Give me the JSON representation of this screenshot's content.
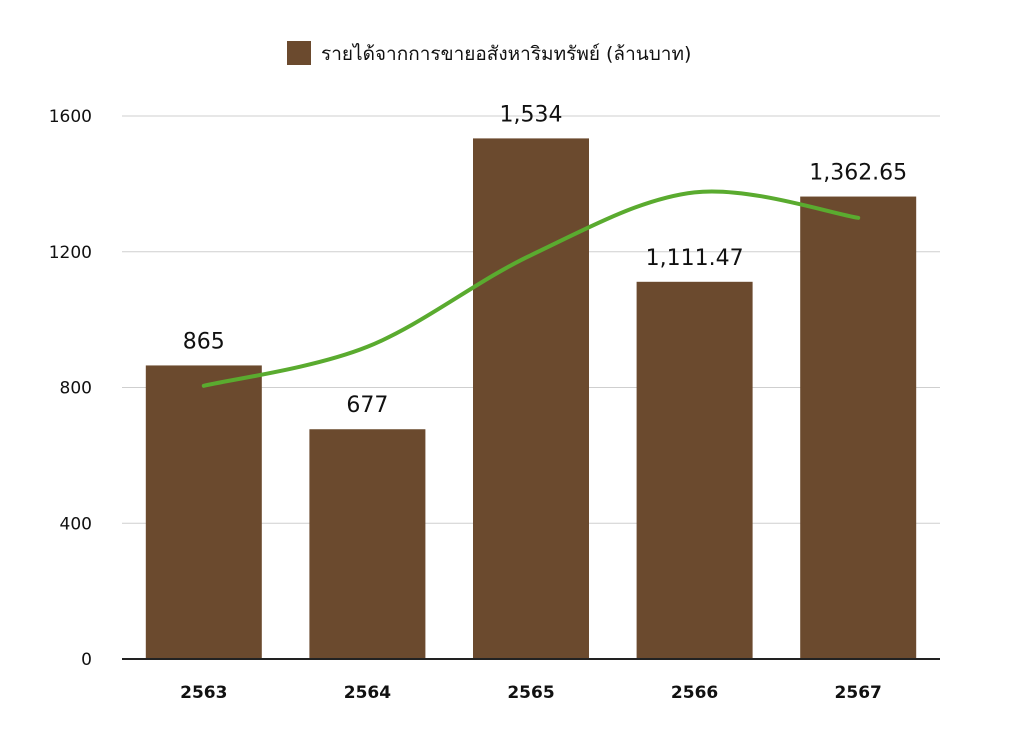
{
  "chart_data": {
    "type": "bar",
    "categories": [
      "2563",
      "2564",
      "2565",
      "2566",
      "2567"
    ],
    "series": [
      {
        "name": "รายได้จากการขายอสังหาริมทรัพย์ (ล้านบาท)",
        "values": [
          865,
          677,
          1534,
          1111.47,
          1362.65
        ],
        "value_labels": [
          "865",
          "677",
          "1,534",
          "1,111.47",
          "1,362.65"
        ],
        "color": "#6b4a2e"
      }
    ],
    "trendline": {
      "type": "polynomial",
      "color": "#5aab2f",
      "values": [
        805,
        920,
        1190,
        1375,
        1300
      ]
    },
    "ylim": [
      0,
      1600
    ],
    "yticks": [
      0,
      400,
      800,
      1200,
      1600
    ],
    "ytick_labels": [
      "0",
      "400",
      "800",
      "1200",
      "1600"
    ],
    "grid": true,
    "legend_position": "top-center",
    "title": "",
    "xlabel": "",
    "ylabel": ""
  }
}
